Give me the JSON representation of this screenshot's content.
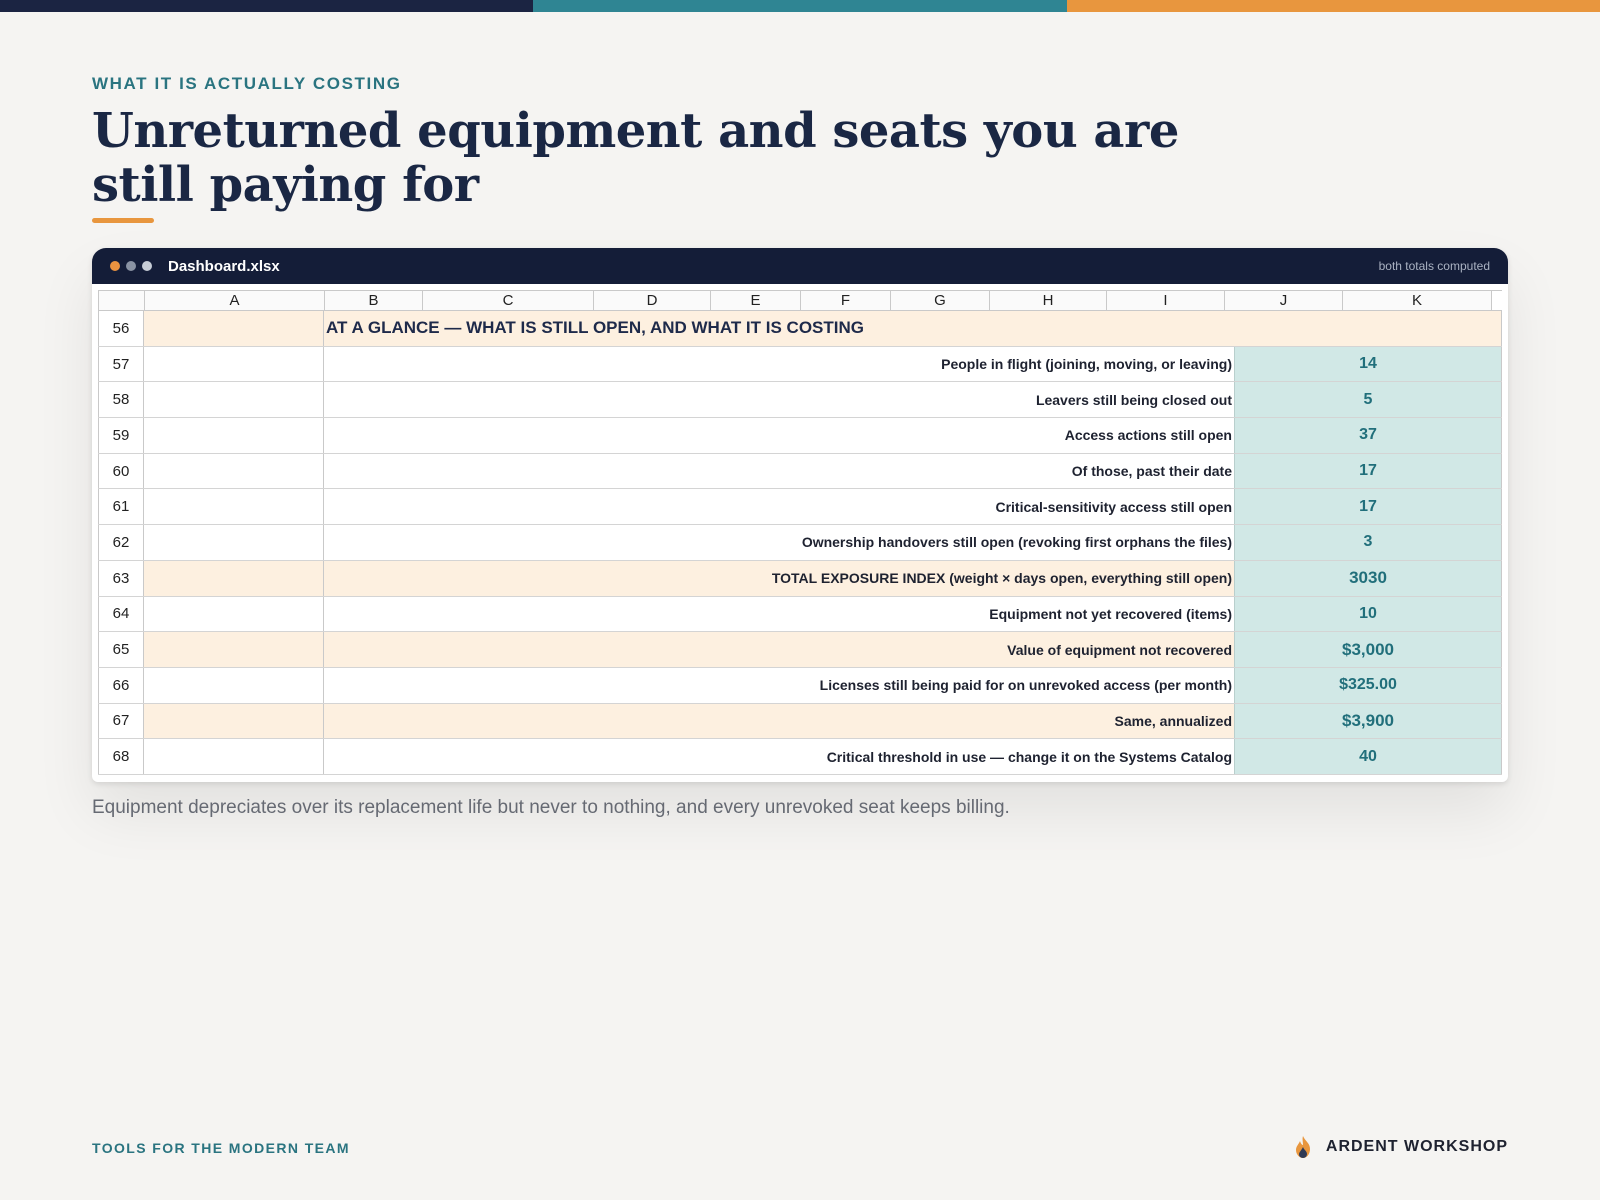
{
  "colors": {
    "bar_navy": "#1b2442",
    "bar_teal": "#2f8593",
    "bar_orange": "#e8963e",
    "dot_orange": "#ea9340",
    "dot_gray": "#8a93a3",
    "dot_light": "#c7cdd6"
  },
  "header": {
    "eyebrow": "WHAT IT IS ACTUALLY COSTING",
    "title": "Unreturned equipment and seats you are still paying for"
  },
  "window": {
    "file_name": "Dashboard.xlsx",
    "status_note": "both totals computed"
  },
  "sheet": {
    "columns": [
      "",
      "A",
      "B",
      "C",
      "D",
      "E",
      "F",
      "G",
      "H",
      "I",
      "J",
      "K"
    ],
    "section": {
      "row": "56",
      "title": "AT A GLANCE — WHAT IS STILL OPEN, AND WHAT IT IS COSTING"
    },
    "rows": [
      {
        "num": "57",
        "label": "People in flight (joining, moving, or leaving)",
        "value": "14"
      },
      {
        "num": "58",
        "label": "Leavers still being closed out",
        "value": "5"
      },
      {
        "num": "59",
        "label": "Access actions still open",
        "value": "37"
      },
      {
        "num": "60",
        "label": "Of those, past their date",
        "value": "17"
      },
      {
        "num": "61",
        "label": "Critical-sensitivity access still open",
        "value": "17"
      },
      {
        "num": "62",
        "label": "Ownership handovers still open (revoking first orphans the files)",
        "value": "3"
      },
      {
        "num": "63",
        "label": "TOTAL EXPOSURE INDEX (weight × days open, everything still open)",
        "value": "3030"
      },
      {
        "num": "64",
        "label": "Equipment not yet recovered (items)",
        "value": "10"
      },
      {
        "num": "65",
        "label": "Value of equipment not recovered",
        "value": "$3,000"
      },
      {
        "num": "66",
        "label": "Licenses still being paid for on unrevoked access (per month)",
        "value": "$325.00"
      },
      {
        "num": "67",
        "label": "Same, annualized",
        "value": "$3,900"
      },
      {
        "num": "68",
        "label": "Critical threshold in use — change it on the Systems Catalog",
        "value": "40"
      }
    ]
  },
  "caption": "Equipment depreciates over its replacement life but never to nothing, and every unrevoked seat keeps billing.",
  "footer": {
    "left": "TOOLS FOR THE MODERN TEAM",
    "brand": "ARDENT WORKSHOP",
    "brand_icon": "flame-icon"
  }
}
